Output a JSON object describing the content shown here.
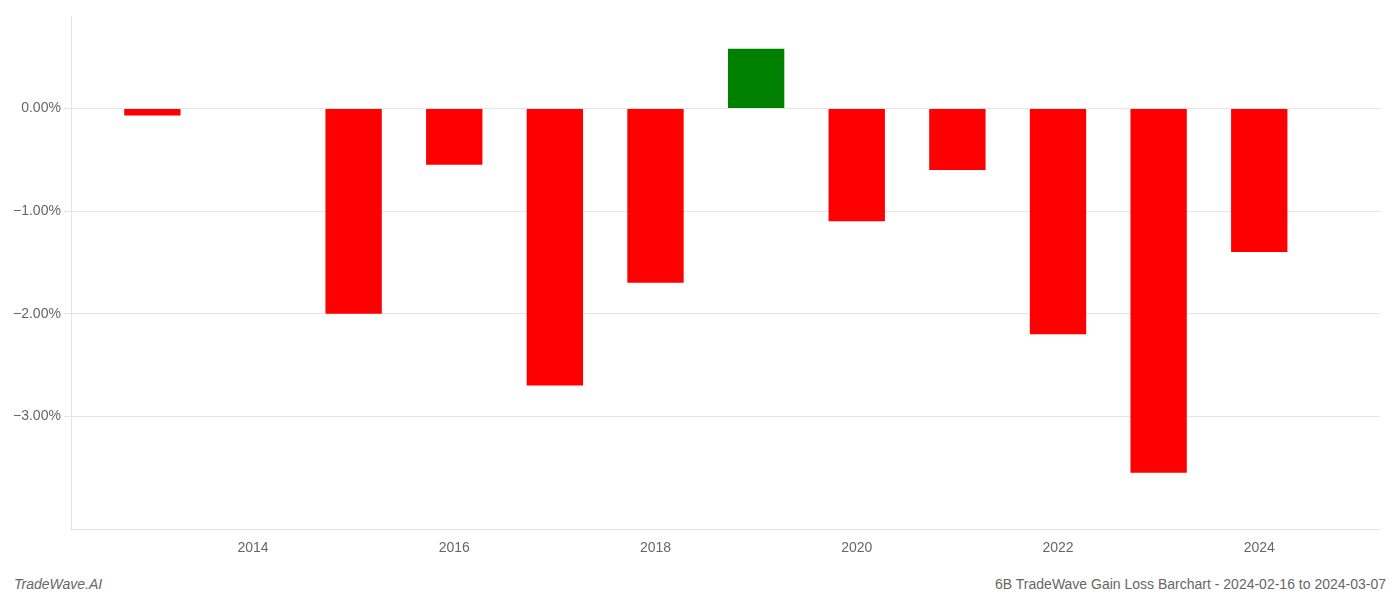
{
  "chart_data": {
    "type": "bar",
    "x": [
      2013,
      2015,
      2016,
      2017,
      2018,
      2019,
      2020,
      2021,
      2022,
      2023,
      2024
    ],
    "values": [
      -0.07,
      -2.0,
      -0.55,
      -2.7,
      -1.7,
      0.58,
      -1.1,
      -0.6,
      -2.2,
      -3.55,
      -1.4
    ],
    "colors": [
      "#ff0000",
      "#ff0000",
      "#ff0000",
      "#ff0000",
      "#ff0000",
      "#008000",
      "#ff0000",
      "#ff0000",
      "#ff0000",
      "#ff0000",
      "#ff0000"
    ],
    "xlim": [
      2012.2,
      2025.2
    ],
    "xticks": [
      2014,
      2016,
      2018,
      2020,
      2022,
      2024
    ],
    "ylim": [
      -4.1,
      0.9
    ],
    "yticks": [
      {
        "value": 0.0,
        "label": "0.00%"
      },
      {
        "value": -1.0,
        "label": "−1.00%"
      },
      {
        "value": -2.0,
        "label": "−2.00%"
      },
      {
        "value": -3.0,
        "label": "−3.00%"
      }
    ],
    "grid": true,
    "annotations": [
      "TradeWave.AI",
      "6B TradeWave Gain Loss Barchart - 2024-02-16 to 2024-03-07"
    ]
  }
}
